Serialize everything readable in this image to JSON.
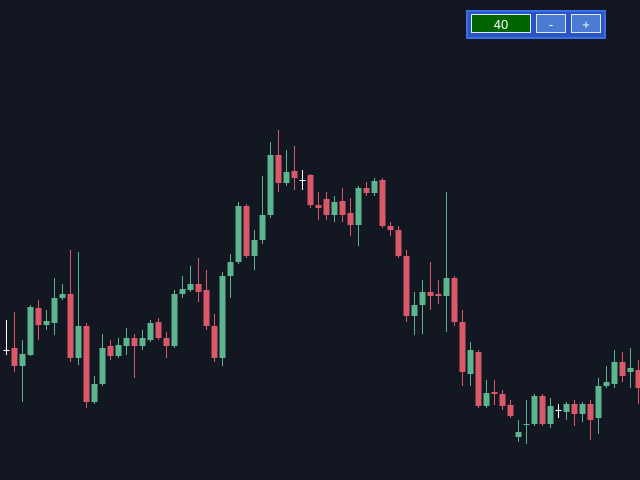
{
  "chart_data": {
    "type": "candlestick",
    "open": [
      130,
      132,
      114,
      125,
      172,
      155,
      157,
      182,
      186,
      122,
      154,
      78,
      96,
      134,
      124,
      134,
      142,
      134,
      140,
      158,
      142,
      134,
      186,
      190,
      196,
      190,
      154,
      122,
      204,
      218,
      274,
      224,
      240,
      265,
      325,
      297,
      309,
      300,
      305,
      275,
      281,
      265,
      279,
      267,
      255,
      292,
      287,
      300,
      254,
      250,
      224,
      164,
      175,
      188,
      186,
      184,
      202,
      158,
      106,
      128,
      74,
      88,
      86,
      75,
      43,
      55,
      56,
      84,
      56,
      70,
      68,
      76,
      66,
      76,
      62,
      94,
      96,
      118,
      108,
      110
    ],
    "high": [
      160,
      168,
      140,
      175,
      180,
      170,
      202,
      196,
      230,
      228,
      157,
      104,
      146,
      140,
      142,
      152,
      146,
      150,
      160,
      162,
      148,
      190,
      204,
      214,
      222,
      210,
      166,
      208,
      226,
      278,
      276,
      250,
      304,
      338,
      350,
      330,
      334,
      310,
      306,
      288,
      288,
      284,
      292,
      282,
      294,
      298,
      302,
      302,
      258,
      254,
      230,
      188,
      200,
      218,
      200,
      288,
      204,
      170,
      138,
      130,
      100,
      100,
      90,
      80,
      60,
      80,
      86,
      86,
      82,
      76,
      78,
      80,
      78,
      80,
      102,
      114,
      130,
      128,
      132,
      120
    ],
    "low": [
      125,
      108,
      78,
      124,
      140,
      150,
      145,
      180,
      118,
      115,
      72,
      76,
      94,
      120,
      122,
      125,
      102,
      130,
      138,
      140,
      122,
      132,
      182,
      188,
      178,
      150,
      118,
      114,
      182,
      216,
      222,
      210,
      236,
      262,
      288,
      294,
      290,
      290,
      272,
      260,
      260,
      258,
      258,
      244,
      234,
      284,
      284,
      252,
      244,
      222,
      158,
      145,
      146,
      170,
      176,
      148,
      154,
      94,
      94,
      72,
      72,
      75,
      70,
      62,
      38,
      36,
      54,
      54,
      52,
      62,
      60,
      54,
      58,
      40,
      46,
      92,
      92,
      98,
      92,
      76
    ],
    "close": [
      130,
      114,
      126,
      173,
      155,
      159,
      182,
      186,
      122,
      154,
      78,
      96,
      132,
      124,
      135,
      142,
      134,
      142,
      157,
      142,
      134,
      186,
      191,
      196,
      188,
      154,
      122,
      204,
      218,
      274,
      224,
      240,
      265,
      325,
      297,
      308,
      302,
      300,
      275,
      272,
      265,
      278,
      265,
      255,
      292,
      287,
      299,
      254,
      250,
      224,
      164,
      175,
      188,
      184,
      184,
      202,
      158,
      108,
      130,
      74,
      87,
      86,
      74,
      64,
      48,
      56,
      84,
      56,
      74,
      70,
      76,
      66,
      76,
      60,
      94,
      98,
      118,
      104,
      112,
      92
    ],
    "ylim": [
      0,
      480
    ],
    "up_color": "#5bb58e",
    "down_color": "#d9596a",
    "doji_color": "#ffffff",
    "background": "#131722"
  },
  "controls": {
    "value": "40",
    "minus": "-",
    "plus": "+"
  }
}
